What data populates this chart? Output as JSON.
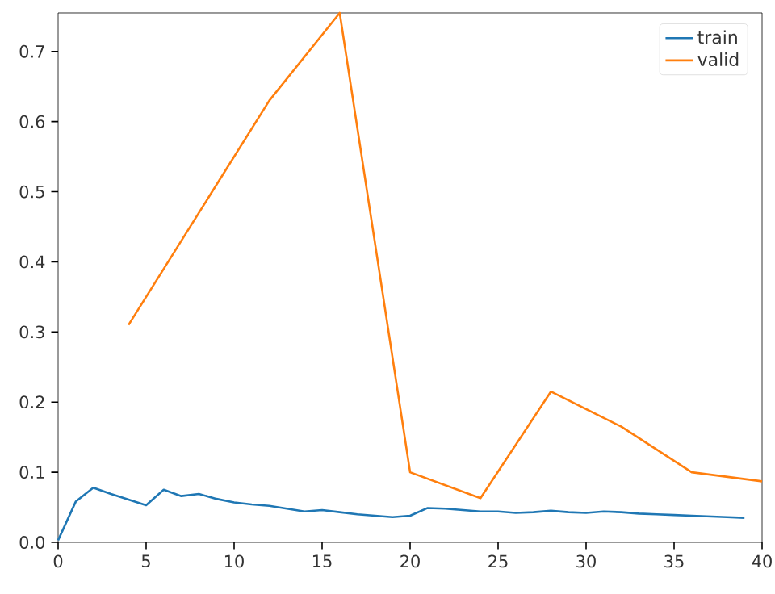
{
  "chart_data": {
    "type": "line",
    "xlim": [
      0,
      40
    ],
    "ylim": [
      0,
      0.755
    ],
    "xticks": [
      0,
      5,
      10,
      15,
      20,
      25,
      30,
      35,
      40
    ],
    "yticks": [
      {
        "value": 0,
        "label": "0.0"
      },
      0.1,
      0.2,
      0.3,
      0.4,
      0.5,
      0.6,
      0.7
    ],
    "legend": "top right",
    "grid": false,
    "series": [
      {
        "name": "train",
        "color": "#1f77b4",
        "x": [
          0,
          1,
          2,
          3,
          4,
          5,
          6,
          7,
          8,
          9,
          10,
          11,
          12,
          13,
          14,
          15,
          16,
          17,
          18,
          19,
          20,
          21,
          22,
          23,
          24,
          25,
          26,
          27,
          28,
          29,
          30,
          31,
          32,
          33,
          34,
          35,
          36,
          37,
          38,
          39
        ],
        "values": [
          0.003,
          0.058,
          0.078,
          0.069,
          0.061,
          0.053,
          0.075,
          0.066,
          0.069,
          0.062,
          0.057,
          0.054,
          0.052,
          0.048,
          0.044,
          0.046,
          0.043,
          0.04,
          0.038,
          0.036,
          0.038,
          0.049,
          0.048,
          0.046,
          0.044,
          0.044,
          0.042,
          0.043,
          0.045,
          0.043,
          0.042,
          0.044,
          0.043,
          0.041,
          0.04,
          0.039,
          0.038,
          0.037,
          0.036,
          0.035
        ]
      },
      {
        "name": "valid",
        "color": "#ff7f0e",
        "x": [
          4,
          8,
          12,
          16,
          20,
          24,
          28,
          32,
          36,
          40
        ],
        "values": [
          0.31,
          0.47,
          0.63,
          0.755,
          0.1,
          0.063,
          0.215,
          0.165,
          0.1,
          0.087
        ]
      }
    ]
  }
}
